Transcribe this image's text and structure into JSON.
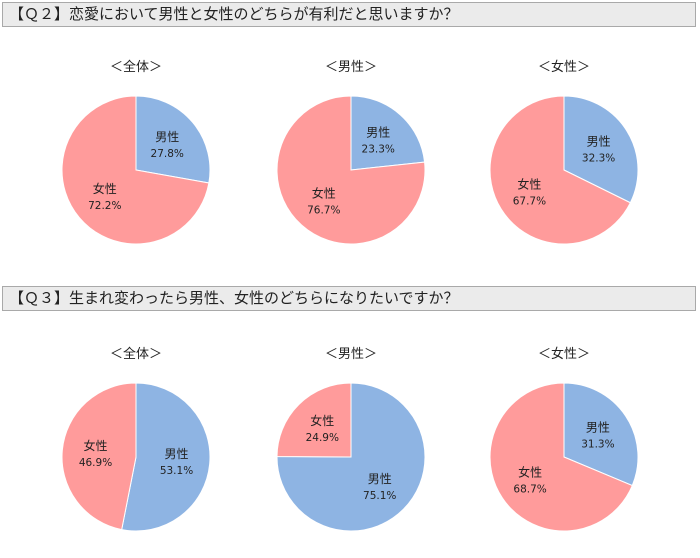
{
  "colors": {
    "male": "#8eb4e3",
    "female": "#ff9b9b",
    "bar_bg": "#ebebeb"
  },
  "q2": {
    "heading": "【Ｑ２】恋愛において男性と女性のどちらが有利だと思いますか？"
  },
  "q3": {
    "heading": "【Ｑ３】生まれ変わったら男性、女性のどちらになりたいですか？"
  },
  "chart_data": [
    {
      "type": "pie",
      "title": "＜全体＞",
      "start": "top",
      "direction": "clockwise",
      "slices": [
        {
          "label": "男性",
          "value": 27.8,
          "value_text": "27.8%",
          "color": "#8eb4e3"
        },
        {
          "label": "女性",
          "value": 72.2,
          "value_text": "72.2%",
          "color": "#ff9b9b"
        }
      ]
    },
    {
      "type": "pie",
      "title": "＜男性＞",
      "start": "top",
      "direction": "clockwise",
      "slices": [
        {
          "label": "男性",
          "value": 23.3,
          "value_text": "23.3%",
          "color": "#8eb4e3"
        },
        {
          "label": "女性",
          "value": 76.7,
          "value_text": "76.7%",
          "color": "#ff9b9b"
        }
      ]
    },
    {
      "type": "pie",
      "title": "＜女性＞",
      "start": "top",
      "direction": "clockwise",
      "slices": [
        {
          "label": "男性",
          "value": 32.3,
          "value_text": "32.3%",
          "color": "#8eb4e3"
        },
        {
          "label": "女性",
          "value": 67.7,
          "value_text": "67.7%",
          "color": "#ff9b9b"
        }
      ]
    },
    {
      "type": "pie",
      "title": "＜全体＞",
      "start": "top",
      "direction": "clockwise",
      "slices": [
        {
          "label": "男性",
          "value": 53.1,
          "value_text": "53.1%",
          "color": "#8eb4e3"
        },
        {
          "label": "女性",
          "value": 46.9,
          "value_text": "46.9%",
          "color": "#ff9b9b"
        }
      ]
    },
    {
      "type": "pie",
      "title": "＜男性＞",
      "start": "top",
      "direction": "clockwise",
      "slices": [
        {
          "label": "男性",
          "value": 75.1,
          "value_text": "75.1%",
          "color": "#8eb4e3"
        },
        {
          "label": "女性",
          "value": 24.9,
          "value_text": "24.9%",
          "color": "#ff9b9b"
        }
      ]
    },
    {
      "type": "pie",
      "title": "＜女性＞",
      "start": "top",
      "direction": "clockwise",
      "slices": [
        {
          "label": "男性",
          "value": 31.3,
          "value_text": "31.3%",
          "color": "#8eb4e3"
        },
        {
          "label": "女性",
          "value": 68.7,
          "value_text": "68.7%",
          "color": "#ff9b9b"
        }
      ]
    }
  ]
}
